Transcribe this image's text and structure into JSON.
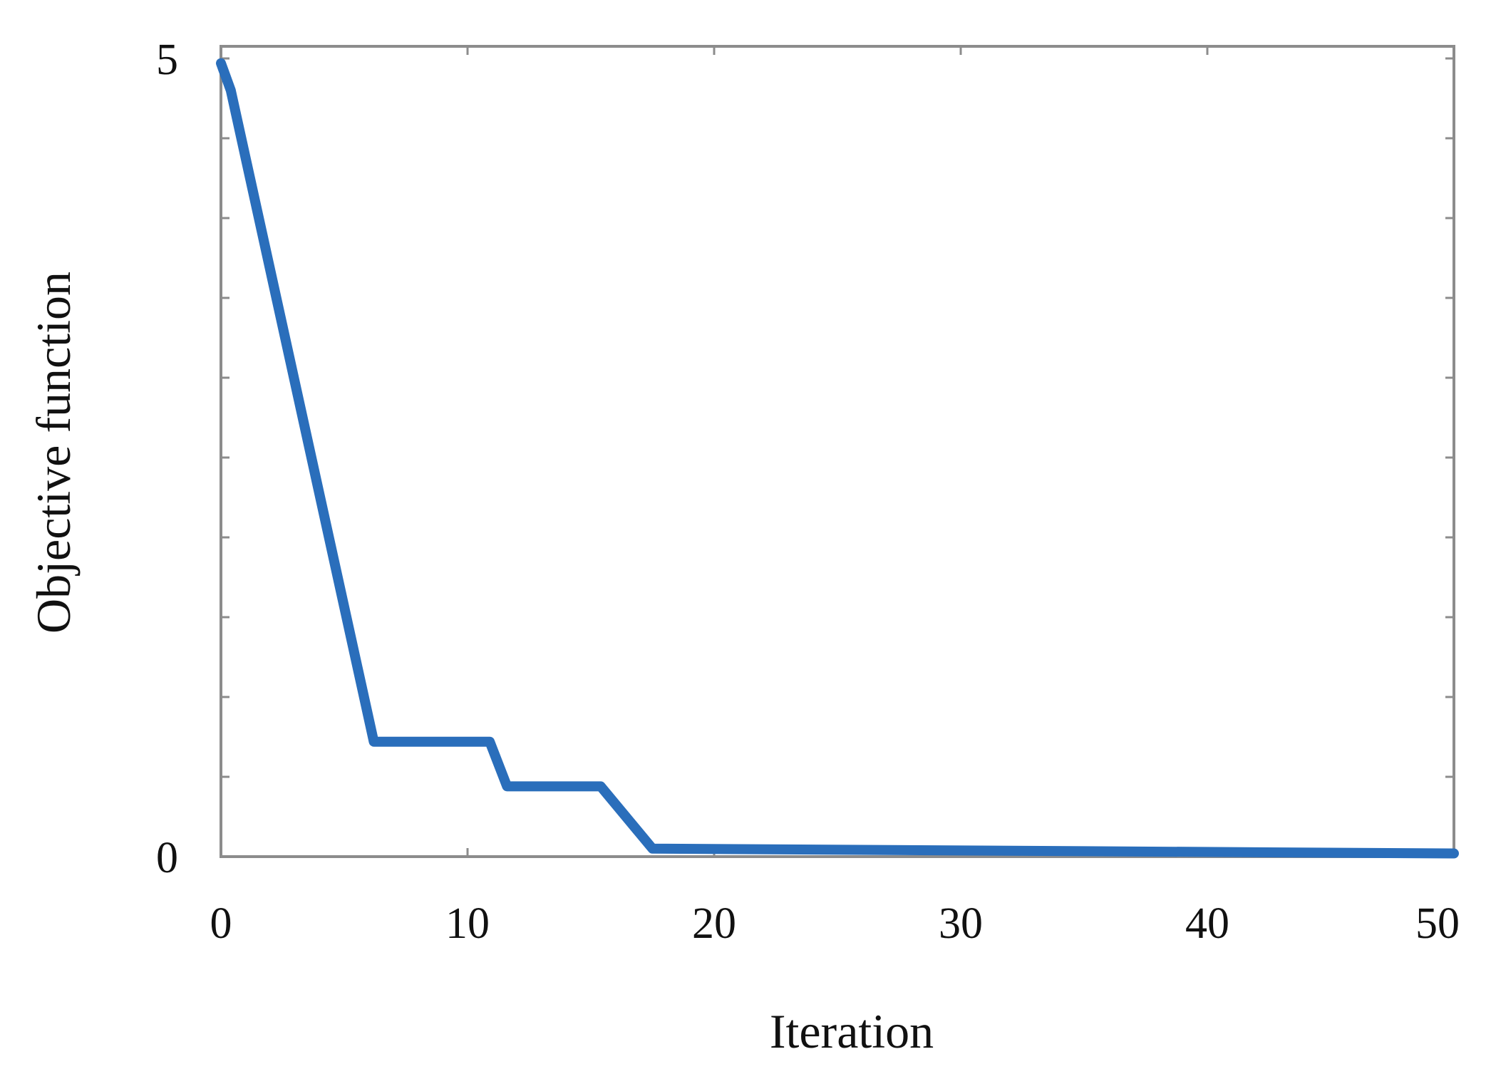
{
  "chart_data": {
    "type": "line",
    "title": "",
    "xlabel": "Iteration",
    "ylabel": "Objective function",
    "xlim": [
      0,
      50
    ],
    "ylim": [
      0,
      5
    ],
    "x_ticks": [
      0,
      10,
      20,
      30,
      40,
      50
    ],
    "x_tick_labels": [
      "0",
      "10",
      "20",
      "30",
      "40",
      "50"
    ],
    "y_tick_labels": [
      {
        "value": 0,
        "label": "0"
      },
      {
        "value": 5,
        "label": "5"
      }
    ],
    "y_minor_ticks": [
      0.5,
      1.0,
      1.5,
      2.0,
      2.5,
      3.0,
      3.5,
      4.0,
      4.5,
      5.0
    ],
    "grid": false,
    "legend": "none",
    "series": [
      {
        "color": "#2a6ebb",
        "x": [
          0,
          0.4,
          6.2,
          10.9,
          11.6,
          15.4,
          17.5,
          50
        ],
        "y": [
          4.97,
          4.8,
          0.72,
          0.72,
          0.44,
          0.44,
          0.05,
          0.02
        ]
      }
    ]
  }
}
